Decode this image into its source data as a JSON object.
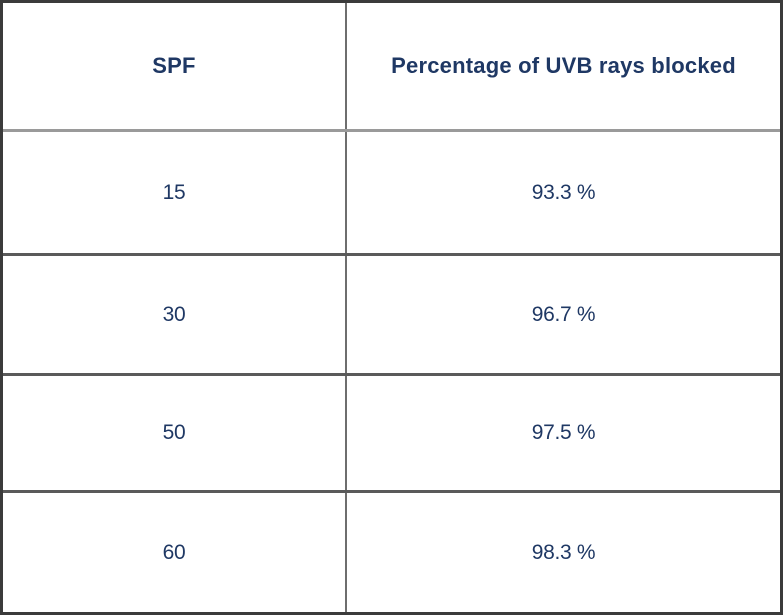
{
  "table": {
    "headers": {
      "spf": "SPF",
      "uvb": "Percentage of UVB rays blocked"
    },
    "rows": [
      {
        "spf": "15",
        "blocked": "93.3 %"
      },
      {
        "spf": "30",
        "blocked": "96.7 %"
      },
      {
        "spf": "50",
        "blocked": "97.5 %"
      },
      {
        "spf": "60",
        "blocked": "98.3 %"
      }
    ]
  },
  "colors": {
    "text": "#1f3864",
    "outer_border": "#3b3b3b",
    "column_divider": "#6e6e6e",
    "header_separator": "#9a9a9a",
    "row_separator": "#5a5a5a",
    "background": "#ffffff"
  },
  "chart_data": {
    "type": "table",
    "title": "",
    "columns": [
      "SPF",
      "Percentage of UVB rays blocked"
    ],
    "rows": [
      [
        "15",
        "93.3 %"
      ],
      [
        "30",
        "96.7 %"
      ],
      [
        "50",
        "97.5 %"
      ],
      [
        "60",
        "98.3 %"
      ]
    ],
    "spf_values": [
      15,
      30,
      50,
      60
    ],
    "uvb_blocked_percent": [
      93.3,
      96.7,
      97.5,
      98.3
    ],
    "grid": true,
    "legend": false
  }
}
